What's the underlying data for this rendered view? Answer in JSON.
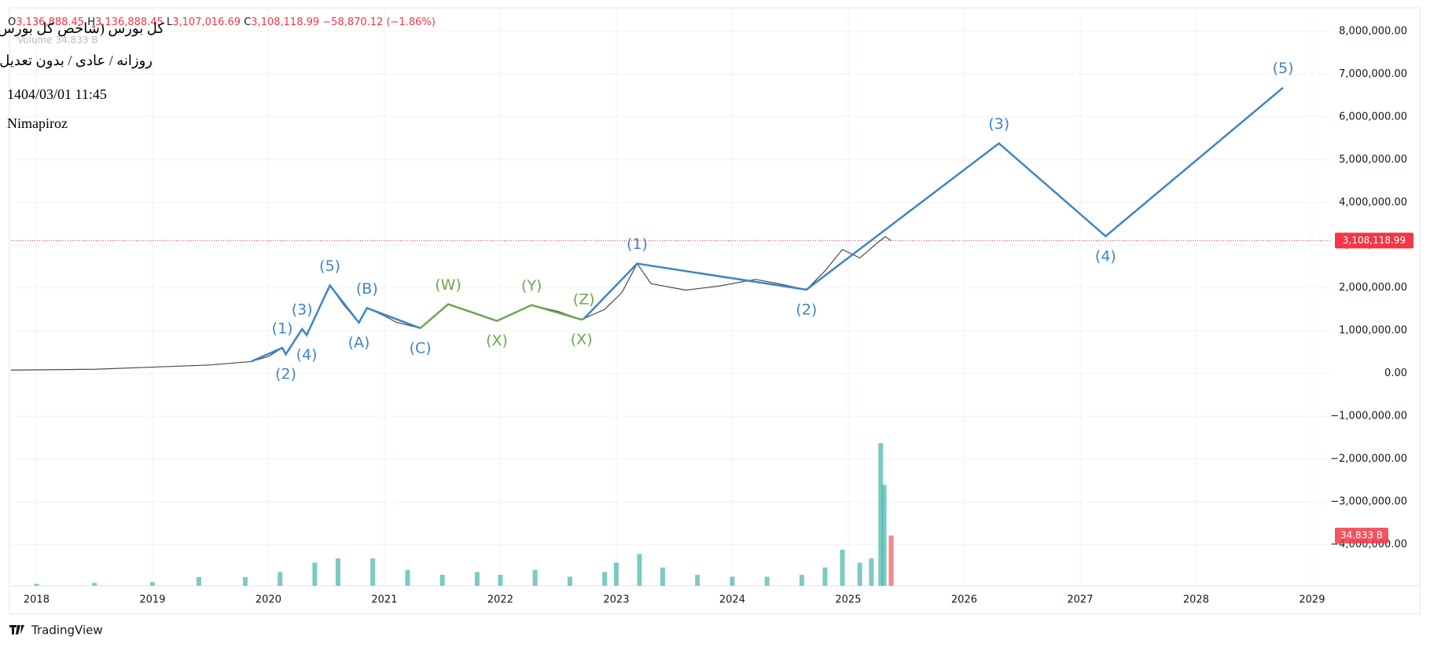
{
  "header": {
    "title": "کل بورس (شاخص کل بورس)",
    "ohlc": [
      {
        "label": "O",
        "value": "3,136,888.45"
      },
      {
        "label": "H",
        "value": "3,136,888.45"
      },
      {
        "label": "L",
        "value": "3,107,016.69"
      },
      {
        "label": "C",
        "value": "3,108,118.99"
      }
    ],
    "change": "−58,870.12 (−1.86%)",
    "volume_name": "Volume",
    "settings": "روزانه / عادی / بدون تعدیل",
    "date": "1404/03/01 11:45",
    "author": "Nimapiroz"
  },
  "footer": {
    "brand": "TradingView"
  },
  "chart_data": {
    "type": "line",
    "xlim": [
      2017.78,
      2029.17
    ],
    "xticks": [
      2018,
      2019,
      2020,
      2021,
      2022,
      2023,
      2024,
      2025,
      2026,
      2027,
      2028,
      2029
    ],
    "ylim": [
      -4960000,
      8510000
    ],
    "yticks": [
      {
        "value": -4000000,
        "label": "−4,000,000.00"
      },
      {
        "value": -3000000,
        "label": "−3,000,000.00"
      },
      {
        "value": -2000000,
        "label": "−2,000,000.00"
      },
      {
        "value": -1000000,
        "label": "−1,000,000.00"
      },
      {
        "value": 0,
        "label": "0.00"
      },
      {
        "value": 1000000,
        "label": "1,000,000.00"
      },
      {
        "value": 2000000,
        "label": "2,000,000.00"
      },
      {
        "value": 3000000,
        "label": "3,000,000.00"
      },
      {
        "value": 4000000,
        "label": "4,000,000.00"
      },
      {
        "value": 5000000,
        "label": "5,000,000.00"
      },
      {
        "value": 6000000,
        "label": "6,000,000.00"
      },
      {
        "value": 7000000,
        "label": "7,000,000.00"
      },
      {
        "value": 8000000,
        "label": "8,000,000.00"
      }
    ],
    "grid": true,
    "price": {
      "color": "#4a4a4a",
      "x": [
        2017.78,
        2018.5,
        2019.0,
        2019.5,
        2019.85,
        2020.0,
        2020.12,
        2020.15,
        2020.29,
        2020.33,
        2020.53,
        2020.65,
        2020.78,
        2020.85,
        2021.0,
        2021.1,
        2021.31,
        2021.55,
        2021.8,
        2021.97,
        2022.27,
        2022.5,
        2022.7,
        2022.9,
        2023.05,
        2023.18,
        2023.3,
        2023.6,
        2023.9,
        2024.2,
        2024.4,
        2024.64,
        2024.8,
        2024.95,
        2025.1,
        2025.25,
        2025.32,
        2025.37
      ],
      "values": [
        80000,
        100000,
        150000,
        200000,
        280000,
        400000,
        600000,
        450000,
        1040000,
        900000,
        2060000,
        1600000,
        1190000,
        1530000,
        1350000,
        1200000,
        1060000,
        1620000,
        1400000,
        1230000,
        1600000,
        1450000,
        1260000,
        1500000,
        1900000,
        2570000,
        2100000,
        1950000,
        2050000,
        2200000,
        2100000,
        1960000,
        2400000,
        2900000,
        2700000,
        3050000,
        3200000,
        3108118.99
      ]
    },
    "price_line": {
      "value": 3108118.99,
      "value_label": "3,108,118.99",
      "color": "#f23645"
    },
    "waves": [
      {
        "color": "#3d85c6",
        "x": [
          2019.85,
          2020.12,
          2020.15,
          2020.29,
          2020.33,
          2020.53,
          2020.78,
          2020.85,
          2021.31
        ],
        "values": [
          280000,
          600000,
          450000,
          1040000,
          900000,
          2060000,
          1190000,
          1530000,
          1060000
        ],
        "labels": [
          null,
          "(1)",
          "(2)",
          "(3)",
          "(4)",
          "(5)",
          "(A)",
          "(B)",
          "(C)"
        ]
      },
      {
        "color": "#6aa84f",
        "x": [
          2021.31,
          2021.55,
          2021.97,
          2022.27,
          2022.7,
          2022.72
        ],
        "values": [
          1060000,
          1620000,
          1230000,
          1600000,
          1260000,
          1280000
        ],
        "labels": [
          null,
          "(W)",
          "(X)",
          "(Y)",
          "(X)",
          "(Z)"
        ]
      },
      {
        "color": "#3d85c6",
        "x": [
          2022.72,
          2023.18,
          2024.64,
          2026.3,
          2027.22,
          2028.75
        ],
        "values": [
          1280000,
          2570000,
          1960000,
          5380000,
          3210000,
          6680000
        ],
        "labels": [
          null,
          "(1)",
          "(2)",
          "(3)",
          "(4)",
          "(5)"
        ]
      }
    ],
    "volume": {
      "color": "#26a69a",
      "last_color": "#f23645",
      "ylim": [
        0,
        400
      ],
      "x": [
        2018.0,
        2018.5,
        2019.0,
        2019.4,
        2019.8,
        2020.1,
        2020.4,
        2020.6,
        2020.9,
        2021.2,
        2021.5,
        2021.8,
        2022.0,
        2022.3,
        2022.6,
        2022.9,
        2023.0,
        2023.2,
        2023.4,
        2023.7,
        2024.0,
        2024.3,
        2024.6,
        2024.8,
        2024.95,
        2025.1,
        2025.2,
        2025.28,
        2025.31,
        2025.37
      ],
      "values": [
        1.3,
        2,
        2.5,
        6,
        6,
        9.5,
        16,
        19,
        19,
        11,
        7.6,
        9.5,
        7.6,
        11,
        6.3,
        9.5,
        16,
        22,
        12.7,
        7.6,
        6.3,
        6.3,
        7.6,
        12.7,
        25,
        16,
        19,
        99,
        70,
        34.833
      ],
      "value_labels": [
        null,
        null,
        null,
        null,
        null,
        null,
        null,
        null,
        null,
        null,
        null,
        null,
        null,
        null,
        null,
        null,
        null,
        null,
        null,
        null,
        null,
        null,
        null,
        null,
        null,
        null,
        null,
        null,
        null,
        "34.833 B"
      ]
    }
  }
}
